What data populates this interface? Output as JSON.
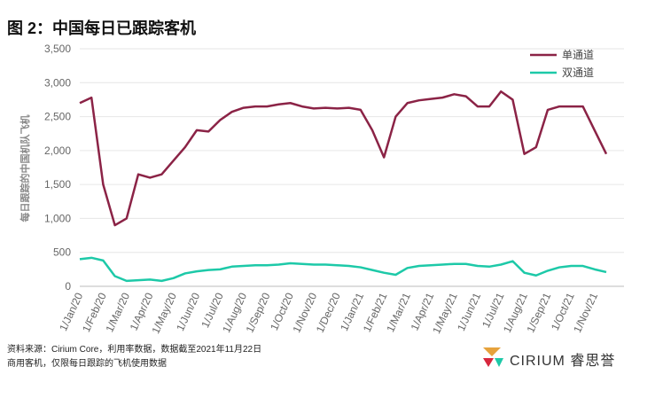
{
  "chart_data": {
    "type": "line",
    "title": "图 2：中国每日已跟踪客机",
    "y_label": "每日跟踪的中国机队飞机",
    "footnotes": [
      "资料来源：Cirium Core，利用率数据，数据截至2021年11月22日",
      "商用客机，仅限每日跟踪的飞机使用数据"
    ],
    "logo": "CIRIUM 睿思誉",
    "legend": "top-right",
    "grid": true,
    "categories": [
      "1/Jan/20",
      null,
      "1/Feb/20",
      null,
      "1/Mar/20",
      null,
      "1/Apr/20",
      null,
      "1/May/20",
      null,
      "1/Jun/20",
      null,
      "1/Jul/20",
      null,
      "1/Aug/20",
      null,
      "1/Sep/20",
      null,
      "1/Oct/20",
      null,
      "1/Nov/20",
      null,
      "1/Dec/20",
      null,
      "1/Jan/21",
      null,
      "1/Feb/21",
      null,
      "1/Mar/21",
      null,
      "1/Apr/21",
      null,
      "1/May/21",
      null,
      "1/Jun/21",
      null,
      "1/Jul/21",
      null,
      "1/Aug/21",
      null,
      "1/Sep/21",
      null,
      "1/Oct/21",
      null,
      "1/Nov/21",
      null
    ],
    "series": [
      {
        "name": "单通道",
        "color": "#8b2346",
        "values": [
          2700,
          2780,
          1500,
          900,
          1000,
          1650,
          1600,
          1650,
          1850,
          2050,
          2300,
          2280,
          2450,
          2570,
          2630,
          2650,
          2650,
          2680,
          2700,
          2650,
          2620,
          2630,
          2620,
          2630,
          2600,
          2300,
          1900,
          2500,
          2700,
          2740,
          2760,
          2780,
          2830,
          2800,
          2650,
          2650,
          2870,
          2750,
          1950,
          2050,
          2600,
          2650,
          2650,
          2650,
          2300,
          1950
        ]
      },
      {
        "name": "双通道",
        "color": "#1dc9a8",
        "values": [
          400,
          420,
          380,
          150,
          80,
          90,
          100,
          80,
          120,
          190,
          220,
          240,
          250,
          290,
          300,
          310,
          310,
          320,
          340,
          330,
          320,
          320,
          310,
          300,
          280,
          240,
          200,
          170,
          270,
          300,
          310,
          320,
          330,
          330,
          300,
          290,
          320,
          370,
          200,
          160,
          230,
          280,
          300,
          300,
          250,
          210
        ]
      }
    ],
    "ylim": [
      0,
      3500
    ],
    "yticks": [
      0,
      {
        "value": 500,
        "label": "500"
      },
      {
        "value": 1000,
        "label": "1,000"
      },
      {
        "value": 1500,
        "label": "1,500"
      },
      {
        "value": 2000,
        "label": "2,000"
      },
      {
        "value": 2500,
        "label": "2,500"
      },
      {
        "value": 3000,
        "label": "3,000"
      },
      {
        "value": 3500,
        "label": "3,500"
      }
    ]
  }
}
